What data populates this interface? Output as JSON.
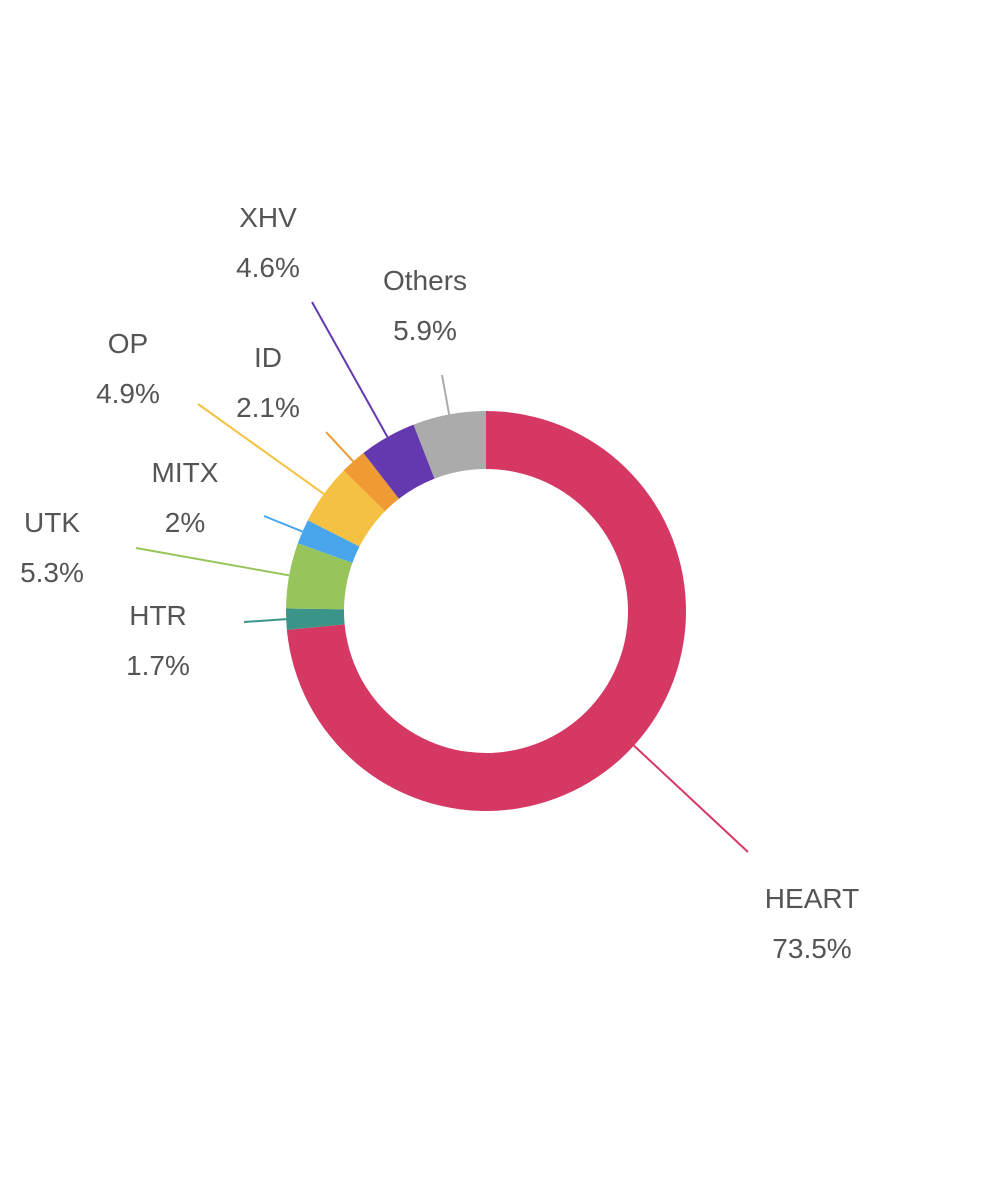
{
  "chart_data": {
    "type": "pie",
    "title": "",
    "slices": [
      {
        "label": "HEART",
        "percent_label": "73.5%",
        "value": 73.5,
        "color": "#d63864"
      },
      {
        "label": "HTR",
        "percent_label": "1.7%",
        "value": 1.7,
        "color": "#3a9488"
      },
      {
        "label": "UTK",
        "percent_label": "5.3%",
        "value": 5.3,
        "color": "#98c45c"
      },
      {
        "label": "MITX",
        "percent_label": "2%",
        "value": 2.0,
        "color": "#4aa6ec"
      },
      {
        "label": "OP",
        "percent_label": "4.9%",
        "value": 4.9,
        "color": "#f5c142"
      },
      {
        "label": "ID",
        "percent_label": "2.1%",
        "value": 2.1,
        "color": "#ef9a32"
      },
      {
        "label": "XHV",
        "percent_label": "4.6%",
        "value": 4.6,
        "color": "#6439b0"
      },
      {
        "label": "Others",
        "percent_label": "5.9%",
        "value": 5.9,
        "color": "#ababab"
      }
    ]
  }
}
